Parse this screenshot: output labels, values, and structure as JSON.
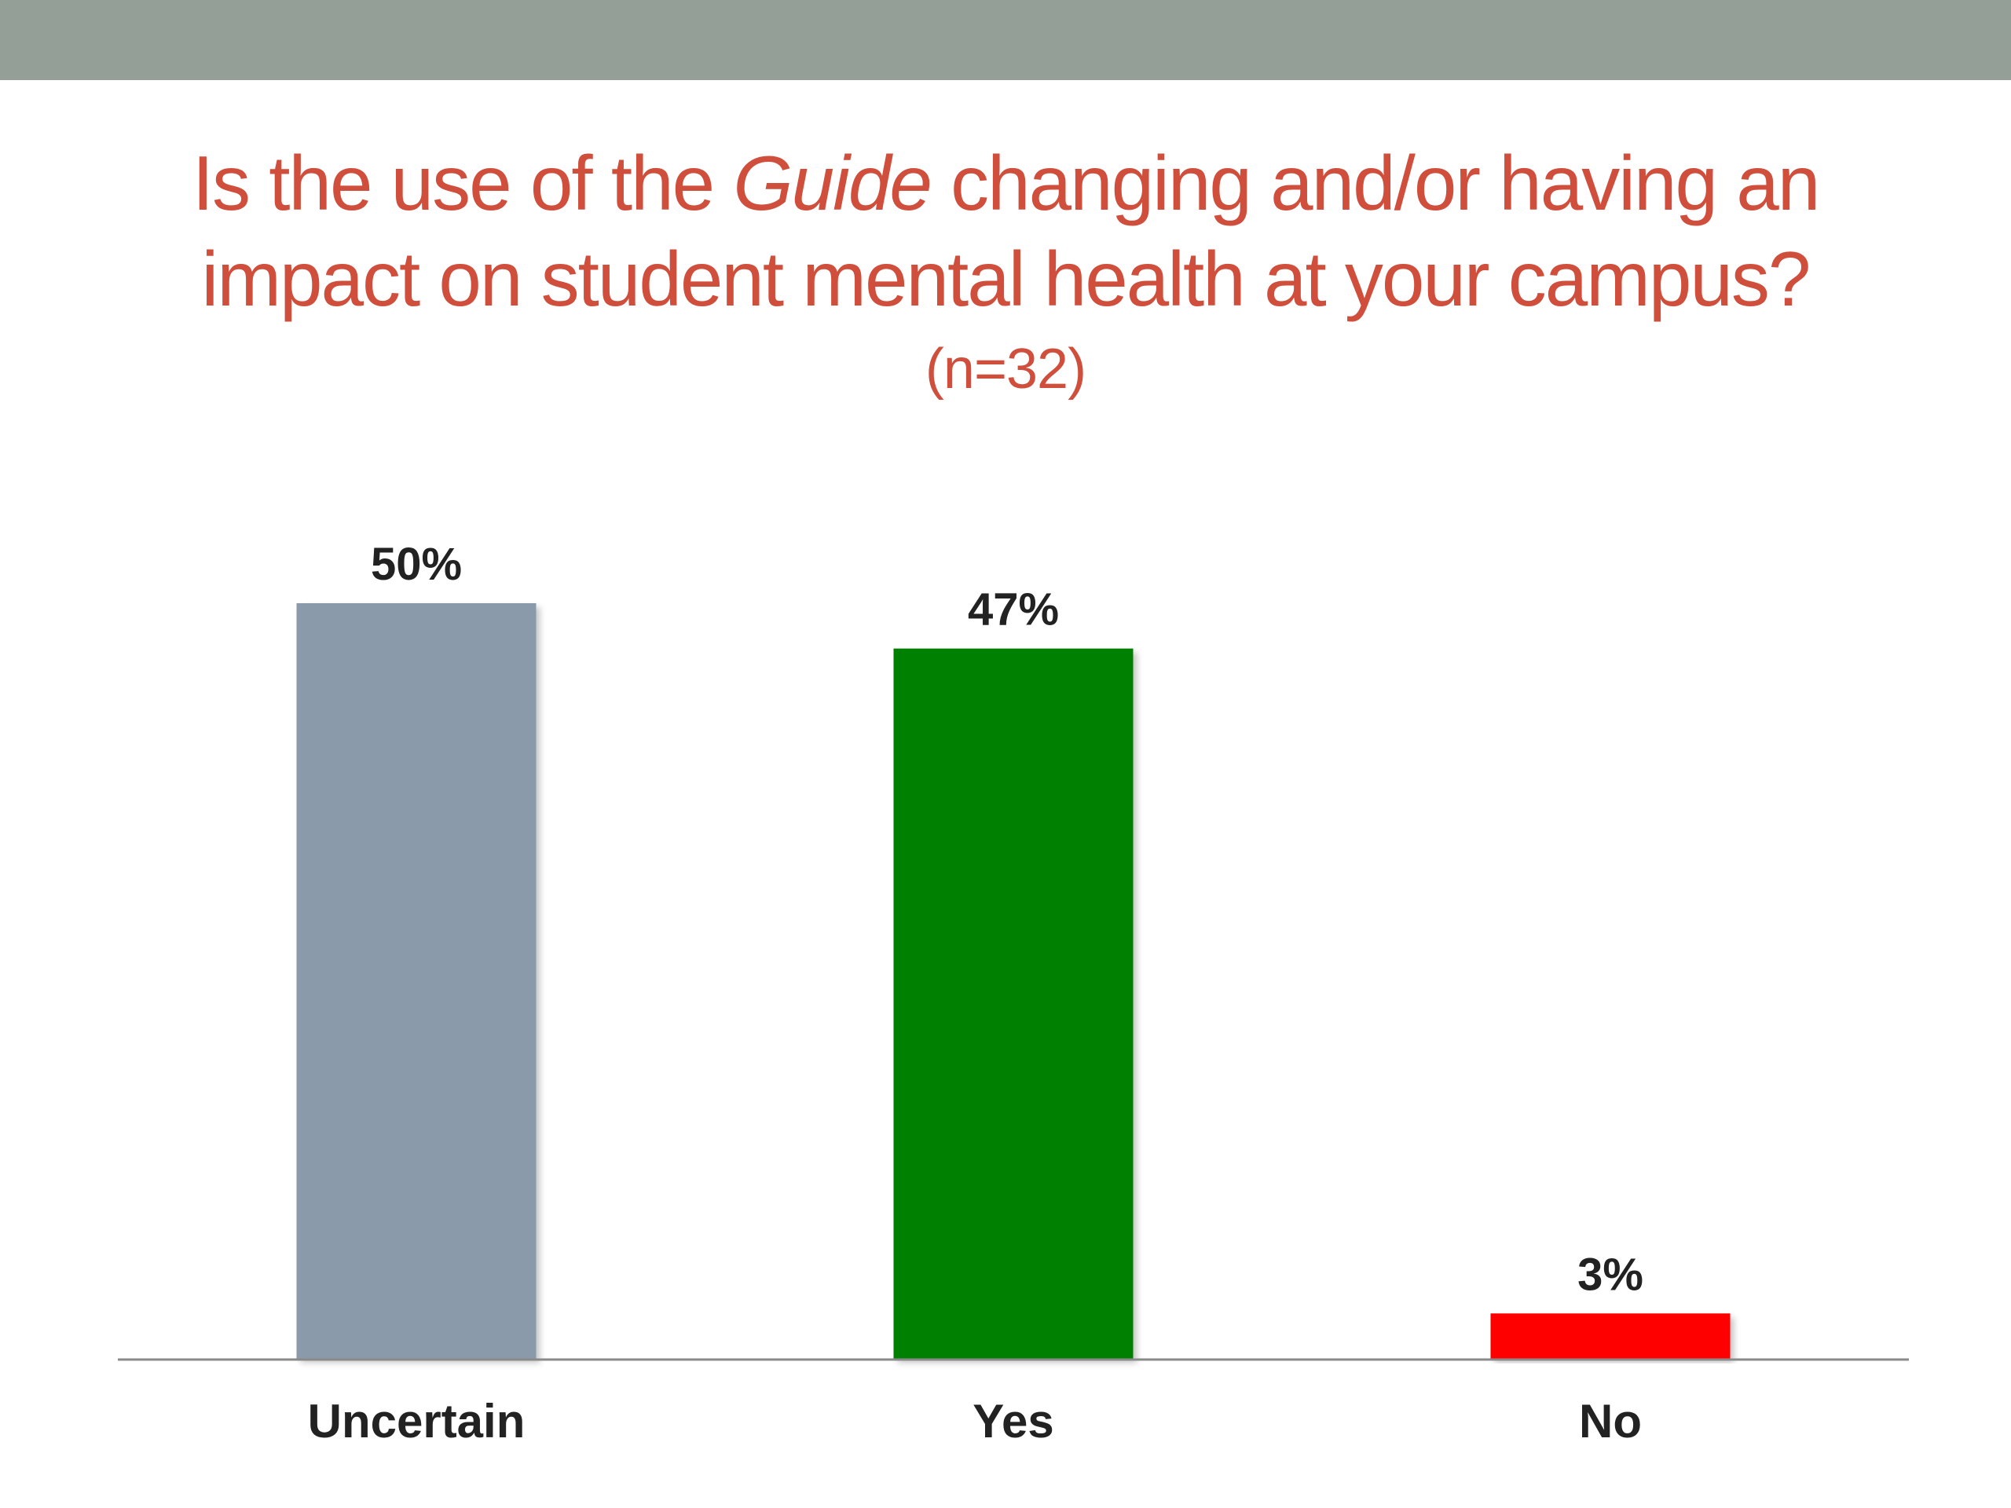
{
  "title": {
    "part1": "Is the use of the ",
    "italic": "Guide",
    "part2": " changing and/or having an",
    "line2": "impact on student mental health at your campus?"
  },
  "subtitle": "(n=32)",
  "chart_data": {
    "type": "bar",
    "categories": [
      "Uncertain",
      "Yes",
      "No"
    ],
    "values": [
      50,
      47,
      3
    ],
    "value_labels": [
      "50%",
      "47%",
      "3%"
    ],
    "colors": [
      "#8a9aaa",
      "#008000",
      "#ff0000"
    ],
    "ylim": [
      0,
      50
    ],
    "grid": false,
    "legend": "none"
  }
}
